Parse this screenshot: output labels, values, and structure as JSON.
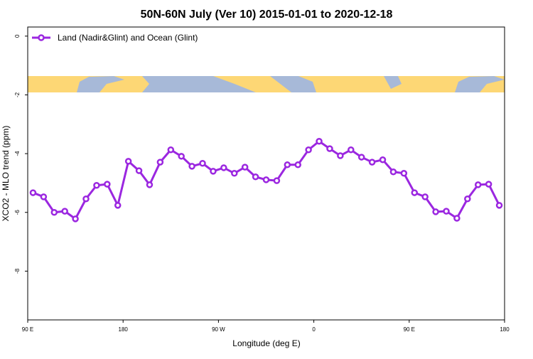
{
  "chart_data": {
    "type": "line",
    "title": "50N-60N July (Ver 10)   2015-01-01 to 2020-12-18",
    "x_label": "Longitude (deg E)",
    "y_label": "XCO2 - MLO trend (ppm)",
    "xlim": [
      90,
      540
    ],
    "xticks": [
      {
        "value": 90,
        "label": "90 E"
      },
      {
        "value": 180,
        "label": "180"
      },
      {
        "value": 270,
        "label": "90 W"
      },
      {
        "value": 360,
        "label": "0"
      },
      {
        "value": 450,
        "label": "90 E"
      },
      {
        "value": 540,
        "label": "180"
      }
    ],
    "ylim": [
      -9.66,
      0.31
    ],
    "yticks": [
      0,
      -2,
      -4,
      -6,
      -8
    ],
    "legend": "top-left",
    "x": [
      95,
      105,
      115,
      125,
      135,
      145,
      155,
      165,
      175,
      185,
      195,
      205,
      215,
      225,
      235,
      245,
      255,
      265,
      275,
      285,
      295,
      305,
      315,
      325,
      335,
      345,
      355,
      365,
      375,
      385,
      395,
      405,
      415,
      425,
      435,
      445,
      455,
      465,
      475,
      485,
      495,
      505,
      515,
      525,
      535
    ],
    "series": [
      {
        "name": "Land (Nadir&Glint) and Ocean (Glint)",
        "color": "#9b27e0",
        "values": [
          -5.33,
          -5.47,
          -6.0,
          -5.96,
          -6.22,
          -5.54,
          -5.08,
          -5.04,
          -5.76,
          -4.26,
          -4.58,
          -5.06,
          -4.29,
          -3.87,
          -4.09,
          -4.43,
          -4.33,
          -4.6,
          -4.48,
          -4.67,
          -4.46,
          -4.79,
          -4.89,
          -4.92,
          -4.38,
          -4.38,
          -3.87,
          -3.58,
          -3.83,
          -4.07,
          -3.87,
          -4.12,
          -4.29,
          -4.21,
          -4.62,
          -4.67,
          -5.33,
          -5.47,
          -5.98,
          -5.96,
          -6.2,
          -5.54,
          -5.06,
          -5.04,
          -5.76
        ]
      }
    ]
  }
}
